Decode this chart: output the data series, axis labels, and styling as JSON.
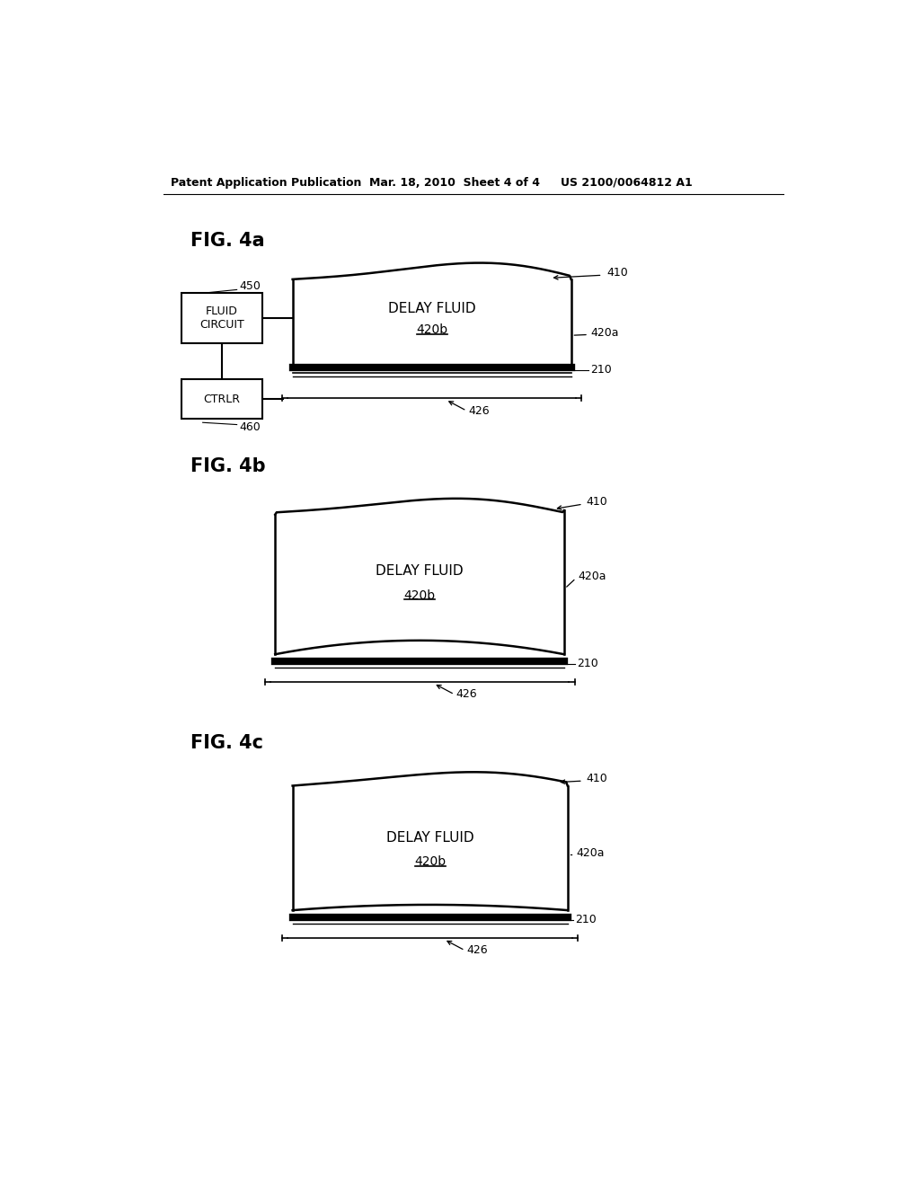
{
  "bg_color": "#ffffff",
  "header_left": "Patent Application Publication",
  "header_mid": "Mar. 18, 2010  Sheet 4 of 4",
  "header_right": "US 2100/0064812 A1",
  "fig4a_title": "FIG. 4a",
  "fig4b_title": "FIG. 4b",
  "fig4c_title": "FIG. 4c",
  "label_delay_fluid": "DELAY FLUID",
  "label_420b": "420b",
  "label_fluid_circuit": "FLUID\nCIRCUIT",
  "label_ctrlr": "CTRLR",
  "ref_410": "410",
  "ref_420a": "420a",
  "ref_210": "210",
  "ref_426": "426",
  "ref_450": "450",
  "ref_460": "460"
}
